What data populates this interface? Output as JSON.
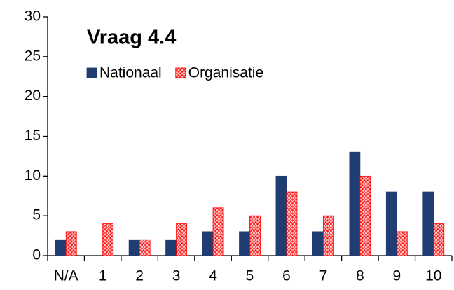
{
  "chart_data": {
    "type": "bar",
    "title": "Vraag 4.4",
    "categories": [
      "N/A",
      "1",
      "2",
      "3",
      "4",
      "5",
      "6",
      "7",
      "8",
      "9",
      "10"
    ],
    "series": [
      {
        "name": "Nationaal",
        "color": "#1f3c73",
        "values": [
          2,
          0,
          2,
          2,
          3,
          3,
          10,
          3,
          13,
          8,
          8
        ]
      },
      {
        "name": "Organisatie",
        "color": "#ff1a1a",
        "values": [
          3,
          4,
          2,
          4,
          6,
          5,
          8,
          5,
          10,
          3,
          4
        ]
      }
    ],
    "ylim": [
      0,
      30
    ],
    "yticks": [
      0,
      5,
      10,
      15,
      20,
      25,
      30
    ],
    "grid": false
  }
}
